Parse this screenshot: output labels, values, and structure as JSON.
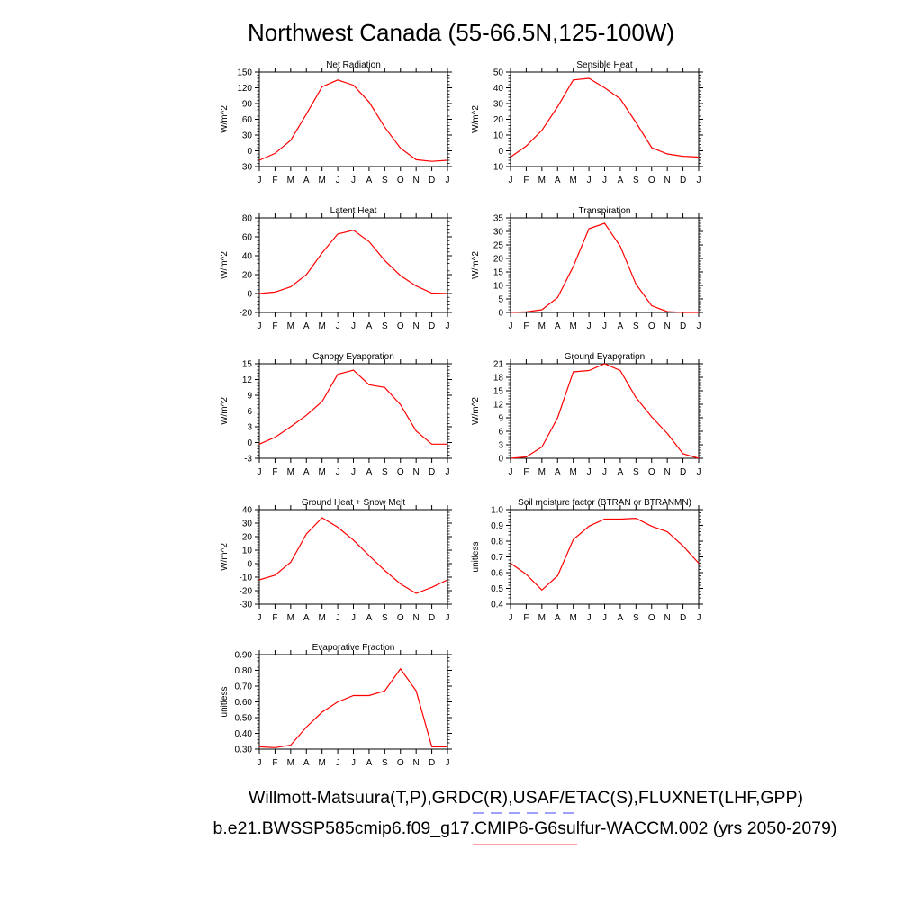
{
  "page": {
    "title": "Northwest Canada (55-66.5N,125-100W)",
    "footer_line1": "Willmott-Matsuura(T,P),GRDC(R),USAF/ETAC(S),FLUXNET(LHF,GPP)",
    "footer_line2": "b.e21.BWSSP585cmip6.f09_g17.CMIP6-G6sulfur-WACCM.002 (yrs 2050-2079)",
    "colors": {
      "line": "#ff0000",
      "legend_dash_blue": "#8080ff",
      "legend_line_red": "#ff8080"
    }
  },
  "chart_data": [
    {
      "type": "line",
      "title": "Net Radiation",
      "xlabel": "",
      "ylabel": "W/m^2",
      "categories": [
        "J",
        "F",
        "M",
        "A",
        "M",
        "J",
        "J",
        "A",
        "S",
        "O",
        "N",
        "D",
        "J"
      ],
      "yticks": [
        -30,
        0,
        30,
        60,
        90,
        120,
        150
      ],
      "ytick_labels": [
        "-30",
        "0",
        "30",
        "60",
        "90",
        "120",
        "150"
      ],
      "ylim": [
        -30,
        150
      ],
      "values": [
        -18,
        -5,
        20,
        70,
        122,
        135,
        125,
        93,
        45,
        5,
        -17,
        -20,
        -18
      ]
    },
    {
      "type": "line",
      "title": "Sensible Heat",
      "xlabel": "",
      "ylabel": "W/m^2",
      "categories": [
        "J",
        "F",
        "M",
        "A",
        "M",
        "J",
        "J",
        "A",
        "S",
        "O",
        "N",
        "D",
        "J"
      ],
      "yticks": [
        -10,
        0,
        10,
        20,
        30,
        40,
        50
      ],
      "ytick_labels": [
        "-10",
        "0",
        "10",
        "20",
        "30",
        "40",
        "50"
      ],
      "ylim": [
        -10,
        50
      ],
      "values": [
        -4,
        3,
        13,
        28,
        45,
        46,
        40,
        33,
        18,
        2,
        -2,
        -3.5,
        -4
      ]
    },
    {
      "type": "line",
      "title": "Latent Heat",
      "xlabel": "",
      "ylabel": "W/m^2",
      "categories": [
        "J",
        "F",
        "M",
        "A",
        "M",
        "J",
        "J",
        "A",
        "S",
        "O",
        "N",
        "D",
        "J"
      ],
      "yticks": [
        -20,
        0,
        20,
        40,
        60,
        80
      ],
      "ytick_labels": [
        "-20",
        "0",
        "20",
        "40",
        "60",
        "80"
      ],
      "ylim": [
        -20,
        80
      ],
      "values": [
        0,
        1.5,
        7,
        20,
        43,
        63,
        67,
        55,
        35,
        19,
        8,
        0.5,
        0
      ]
    },
    {
      "type": "line",
      "title": "Transpiration",
      "xlabel": "",
      "ylabel": "W/m^2",
      "categories": [
        "J",
        "F",
        "M",
        "A",
        "M",
        "J",
        "J",
        "A",
        "S",
        "O",
        "N",
        "D",
        "J"
      ],
      "yticks": [
        0,
        5,
        10,
        15,
        20,
        25,
        30,
        35
      ],
      "ytick_labels": [
        "0",
        "5",
        "10",
        "15",
        "20",
        "25",
        "30",
        "35"
      ],
      "ylim": [
        0,
        35
      ],
      "values": [
        0,
        0.2,
        1,
        5.5,
        17,
        31,
        33,
        24.5,
        10.5,
        2.5,
        0.3,
        0,
        0
      ]
    },
    {
      "type": "line",
      "title": "Canopy Evaporation",
      "xlabel": "",
      "ylabel": "W/m^2",
      "categories": [
        "J",
        "F",
        "M",
        "A",
        "M",
        "J",
        "J",
        "A",
        "S",
        "O",
        "N",
        "D",
        "J"
      ],
      "yticks": [
        -3,
        0,
        3,
        6,
        9,
        12,
        15
      ],
      "ytick_labels": [
        "-3",
        "0",
        "3",
        "6",
        "9",
        "12",
        "15"
      ],
      "ylim": [
        -3,
        15
      ],
      "values": [
        -0.3,
        1,
        3,
        5.2,
        7.8,
        13,
        13.8,
        11,
        10.5,
        7.2,
        2.2,
        -0.3,
        -0.3
      ]
    },
    {
      "type": "line",
      "title": "Ground Evaporation",
      "xlabel": "",
      "ylabel": "W/m^2",
      "categories": [
        "J",
        "F",
        "M",
        "A",
        "M",
        "J",
        "J",
        "A",
        "S",
        "O",
        "N",
        "D",
        "J"
      ],
      "yticks": [
        0,
        3,
        6,
        9,
        12,
        15,
        18,
        21
      ],
      "ytick_labels": [
        "0",
        "3",
        "6",
        "9",
        "12",
        "15",
        "18",
        "21"
      ],
      "ylim": [
        0,
        21
      ],
      "values": [
        0,
        0.3,
        2.5,
        9,
        19.2,
        19.5,
        21,
        19.5,
        13.5,
        9.2,
        5.5,
        1,
        0
      ]
    },
    {
      "type": "line",
      "title": "Ground Heat + Snow Melt",
      "xlabel": "",
      "ylabel": "W/m^2",
      "categories": [
        "J",
        "F",
        "M",
        "A",
        "M",
        "J",
        "J",
        "A",
        "S",
        "O",
        "N",
        "D",
        "J"
      ],
      "yticks": [
        -30,
        -20,
        -10,
        0,
        10,
        20,
        30,
        40
      ],
      "ytick_labels": [
        "-30",
        "-20",
        "-10",
        "0",
        "10",
        "20",
        "30",
        "40"
      ],
      "ylim": [
        -30,
        40
      ],
      "values": [
        -12,
        -8.5,
        1,
        22,
        34,
        27,
        17.5,
        6,
        -5,
        -15,
        -22,
        -17.5,
        -12
      ]
    },
    {
      "type": "line",
      "title": "Soil moisture factor (BTRAN or BTRANMN)",
      "xlabel": "",
      "ylabel": "unitless",
      "categories": [
        "J",
        "F",
        "M",
        "A",
        "M",
        "J",
        "J",
        "A",
        "S",
        "O",
        "N",
        "D",
        "J"
      ],
      "yticks": [
        0.4,
        0.5,
        0.6,
        0.7,
        0.8,
        0.9,
        1.0
      ],
      "ytick_labels": [
        "0.4",
        "0.5",
        "0.6",
        "0.7",
        "0.8",
        "0.9",
        "1.0"
      ],
      "ylim": [
        0.4,
        1.0
      ],
      "values": [
        0.66,
        0.59,
        0.49,
        0.58,
        0.81,
        0.895,
        0.94,
        0.94,
        0.945,
        0.895,
        0.86,
        0.77,
        0.66
      ]
    },
    {
      "type": "line",
      "title": "Evaporative Fraction",
      "xlabel": "",
      "ylabel": "unitless",
      "categories": [
        "J",
        "F",
        "M",
        "A",
        "M",
        "J",
        "J",
        "A",
        "S",
        "O",
        "N",
        "D",
        "J"
      ],
      "yticks": [
        0.3,
        0.4,
        0.5,
        0.6,
        0.7,
        0.8,
        0.9
      ],
      "ytick_labels": [
        "0.30",
        "0.40",
        "0.50",
        "0.60",
        "0.70",
        "0.80",
        "0.90"
      ],
      "ylim": [
        0.3,
        0.9
      ],
      "values": [
        0.315,
        0.31,
        0.325,
        0.44,
        0.535,
        0.6,
        0.64,
        0.64,
        0.67,
        0.81,
        0.67,
        0.315,
        0.315
      ]
    }
  ]
}
